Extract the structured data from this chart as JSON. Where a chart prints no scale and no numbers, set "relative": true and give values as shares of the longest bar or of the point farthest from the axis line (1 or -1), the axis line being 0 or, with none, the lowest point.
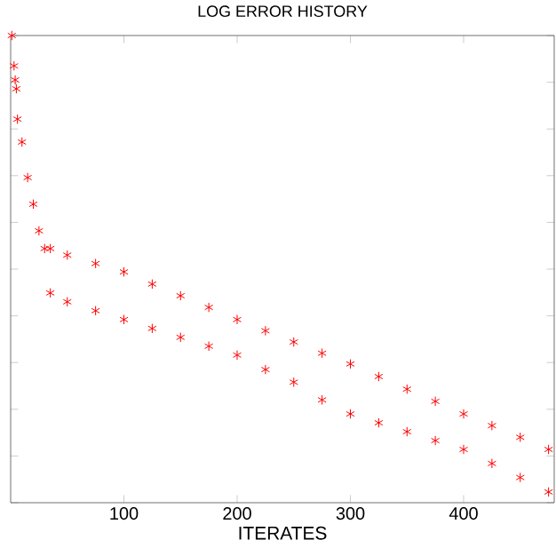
{
  "chart_data": {
    "type": "scatter",
    "title": "LOG ERROR HISTORY",
    "xlabel": "ITERATES",
    "relative": true,
    "tick_labels": "x",
    "marker": "cross",
    "xlim": [
      0,
      480
    ],
    "xticks": [
      100,
      200,
      300,
      400
    ],
    "series": [
      {
        "color": "#ff0000",
        "x": [
          1,
          3,
          4,
          5,
          6,
          10,
          15,
          20,
          25,
          30,
          35,
          35,
          50,
          50,
          75,
          75,
          100,
          100,
          125,
          125,
          150,
          150,
          175,
          175,
          200,
          200,
          225,
          225,
          250,
          250,
          275,
          275,
          300,
          300,
          325,
          325,
          350,
          350,
          375,
          375,
          400,
          400,
          425,
          425,
          450,
          450,
          475,
          475
        ],
        "values": [
          1.0,
          0.935,
          0.905,
          0.886,
          0.821,
          0.772,
          0.696,
          0.639,
          0.582,
          0.544,
          0.544,
          0.449,
          0.53,
          0.43,
          0.512,
          0.411,
          0.494,
          0.392,
          0.468,
          0.373,
          0.443,
          0.354,
          0.418,
          0.335,
          0.392,
          0.316,
          0.368,
          0.285,
          0.344,
          0.258,
          0.32,
          0.22,
          0.297,
          0.19,
          0.27,
          0.171,
          0.243,
          0.152,
          0.217,
          0.133,
          0.19,
          0.114,
          0.165,
          0.084,
          0.14,
          0.054,
          0.114,
          0.023
        ]
      }
    ]
  }
}
